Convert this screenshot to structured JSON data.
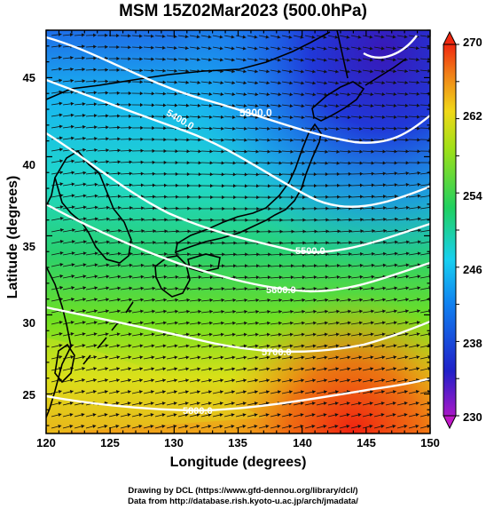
{
  "title": "MSM 15Z02Mar2023 (500.0hPa)",
  "xlabel": "Longitude (degrees)",
  "ylabel": "Latitude (degrees)",
  "x_ticks": [
    "120",
    "125",
    "130",
    "135",
    "140",
    "145",
    "150"
  ],
  "y_ticks": [
    "25",
    "30",
    "35",
    "40",
    "45"
  ],
  "colorbar": {
    "ticks": [
      "230",
      "238",
      "246",
      "254",
      "262",
      "270"
    ],
    "min": 230,
    "max": 270
  },
  "contours": [
    {
      "label": "5300.0",
      "value": 5300
    },
    {
      "label": "5400.0",
      "value": 5400
    },
    {
      "label": "5500.0",
      "value": 5500
    },
    {
      "label": "5600.0",
      "value": 5600
    },
    {
      "label": "5700.0",
      "value": 5700
    },
    {
      "label": "5800.0",
      "value": 5800
    }
  ],
  "credits": {
    "line1": "Drawing by DCL (https://www.gfd-dennou.org/library/dcl/)",
    "line2": "Data from http://database.rish.kyoto-u.ac.jp/arch/jmadata/"
  },
  "colors": {
    "cold": "#2a2ad8",
    "cyan": "#18c8f0",
    "green": "#20d060",
    "yellow": "#e8e818",
    "warm": "#f02818"
  },
  "chart_data": {
    "type": "heatmap",
    "xlim": [
      120,
      150
    ],
    "ylim": [
      22.5,
      48
    ],
    "variable": "temperature (K) with geopotential height contours and wind vectors"
  }
}
